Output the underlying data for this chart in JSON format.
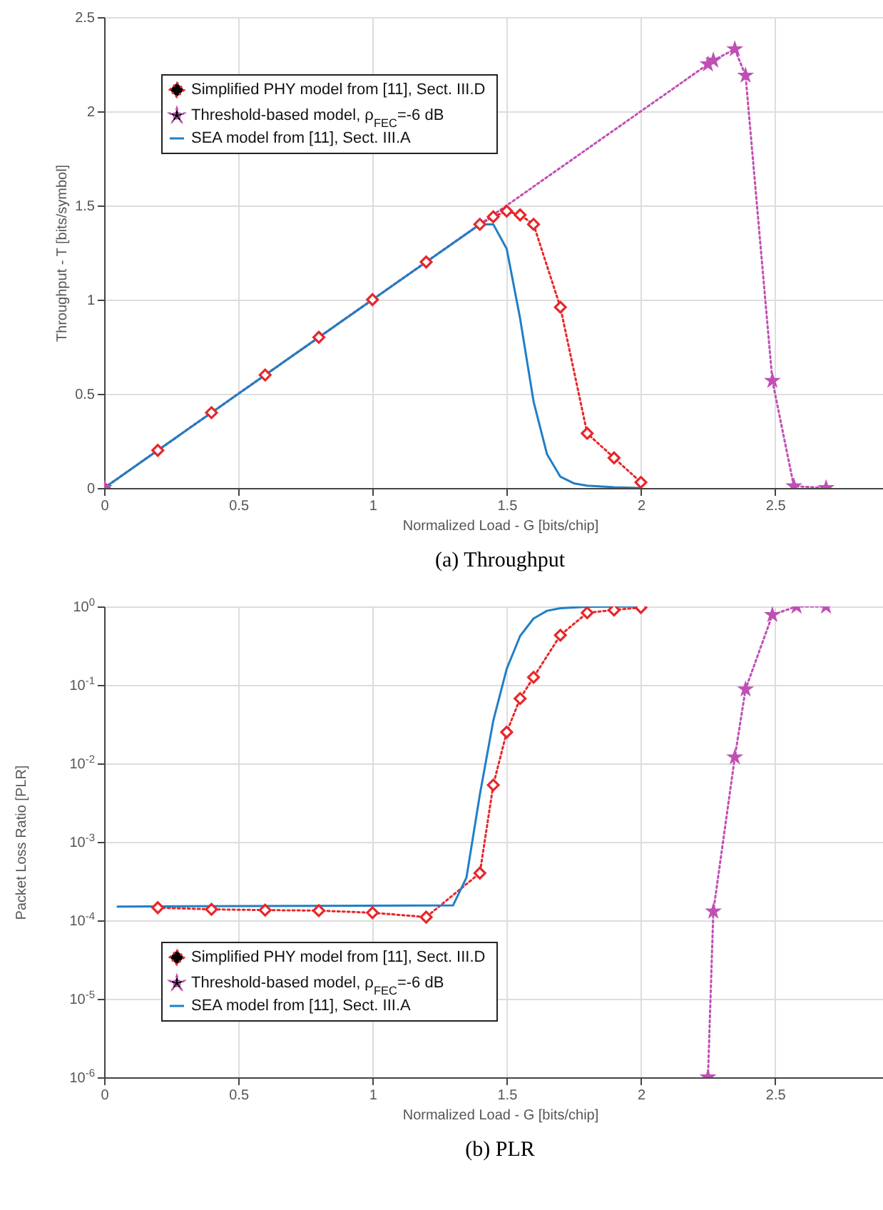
{
  "chart_data": [
    {
      "type": "line",
      "title": "(a) Throughput",
      "xlabel": "Normalized Load - G [bits/chip]",
      "ylabel": "Throughput - T [bits/symbol]",
      "xlim": [
        0,
        2.95
      ],
      "xticks": [
        0,
        0.5,
        1,
        1.5,
        2,
        2.5
      ],
      "ylim": [
        0,
        2.5
      ],
      "yticks": [
        0,
        0.5,
        1,
        1.5,
        2,
        2.5
      ],
      "grid": true,
      "legend": "top left",
      "series": [
        {
          "name": "Simplified PHY model from [11], Sect. III.D",
          "color": "#e8262a",
          "marker": "diamond",
          "line_style": "dotted",
          "x": [
            0,
            0.2,
            0.4,
            0.6,
            0.8,
            1.0,
            1.2,
            1.4,
            1.45,
            1.5,
            1.55,
            1.6,
            1.7,
            1.8,
            1.9,
            2.0
          ],
          "values": [
            0,
            0.2,
            0.4,
            0.6,
            0.8,
            1.0,
            1.2,
            1.4,
            1.44,
            1.47,
            1.45,
            1.4,
            0.96,
            0.29,
            0.16,
            0.03
          ]
        },
        {
          "name": "Threshold-based model, ρ$_{FEC}$=-6 dB",
          "color": "#c04fb5",
          "marker": "star",
          "line_style": "dotted",
          "x": [
            0,
            2.25,
            2.27,
            2.35,
            2.39,
            2.49,
            2.57,
            2.69
          ],
          "values": [
            0,
            2.25,
            2.27,
            2.33,
            2.19,
            0.57,
            0.01,
            0
          ]
        },
        {
          "name": "SEA model from [11], Sect. III.A",
          "color": "#1f7fc6",
          "marker": "none",
          "line_style": "solid",
          "x": [
            0,
            1.4,
            1.45,
            1.5,
            1.55,
            1.6,
            1.65,
            1.7,
            1.75,
            1.8,
            1.9,
            2.0
          ],
          "values": [
            0,
            1.4,
            1.4,
            1.27,
            0.9,
            0.46,
            0.18,
            0.06,
            0.025,
            0.012,
            0.004,
            0
          ]
        }
      ]
    },
    {
      "type": "line",
      "title": "(b) PLR",
      "xlabel": "Normalized Load - G [bits/chip]",
      "ylabel": "Packet Loss Ratio [PLR]",
      "log": "y",
      "xlim": [
        0,
        2.95
      ],
      "xticks": [
        0,
        0.5,
        1,
        1.5,
        2,
        2.5
      ],
      "ylim": [
        1e-06,
        1
      ],
      "yticks": [
        {
          "value": 1e-06,
          "label": "10$^{-6}$"
        },
        {
          "value": 1e-05,
          "label": "10$^{-5}$"
        },
        {
          "value": 0.0001,
          "label": "10$^{-4}$"
        },
        {
          "value": 0.001,
          "label": "10$^{-3}$"
        },
        {
          "value": 0.01,
          "label": "10$^{-2}$"
        },
        {
          "value": 0.1,
          "label": "10$^{-1}$"
        },
        {
          "value": 1,
          "label": "10$^{0}$"
        }
      ],
      "grid": true,
      "legend": "bottom left",
      "series": [
        {
          "name": "Simplified PHY model from [11], Sect. III.D",
          "color": "#e8262a",
          "marker": "diamond",
          "line_style": "dotted",
          "x": [
            0.2,
            0.4,
            0.6,
            0.8,
            1.0,
            1.2,
            1.4,
            1.45,
            1.5,
            1.55,
            1.6,
            1.7,
            1.8,
            1.9,
            2.0
          ],
          "values": [
            0.000145,
            0.000138,
            0.000135,
            0.000133,
            0.000125,
            0.00011,
            0.0004,
            0.0053,
            0.025,
            0.067,
            0.125,
            0.43,
            0.83,
            0.9,
            0.97
          ]
        },
        {
          "name": "Threshold-based model, ρ$_{FEC}$=-6 dB",
          "color": "#c04fb5",
          "marker": "star",
          "line_style": "dotted",
          "x": [
            2.25,
            2.27,
            2.35,
            2.39,
            2.49,
            2.58,
            2.69
          ],
          "values": [
            1e-06,
            0.00013,
            0.012,
            0.088,
            0.78,
            1,
            1
          ]
        },
        {
          "name": "SEA model from [11], Sect. III.A",
          "color": "#1f7fc6",
          "marker": "none",
          "line_style": "solid",
          "x": [
            0.05,
            1.3,
            1.35,
            1.4,
            1.45,
            1.5,
            1.55,
            1.6,
            1.65,
            1.7,
            1.8,
            2.0
          ],
          "values": [
            0.00015,
            0.000155,
            0.00035,
            0.004,
            0.035,
            0.16,
            0.42,
            0.7,
            0.88,
            0.95,
            0.99,
            1
          ]
        }
      ]
    }
  ]
}
